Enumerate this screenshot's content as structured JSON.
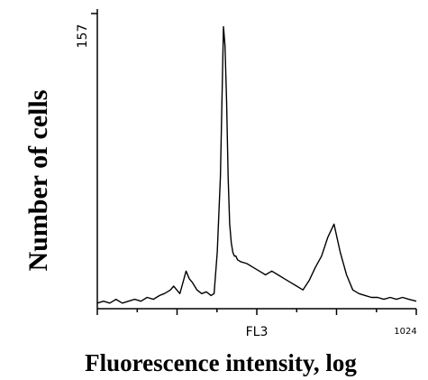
{
  "chart_data": {
    "type": "line",
    "title": "",
    "ylabel": "Number of cells",
    "xlabel": "Fluorescence intensity, log",
    "x_axis_channel_label": "FL3",
    "y_tick_top_label": "157",
    "x_tick_end_label": "1024",
    "xlim": [
      0,
      1024
    ],
    "ylim": [
      0,
      157
    ],
    "x_scale": "log",
    "grid": false,
    "series": [
      {
        "x": [
          0,
          20,
          40,
          60,
          80,
          100,
          120,
          140,
          160,
          180,
          200,
          215,
          225,
          235,
          245,
          255,
          265,
          275,
          285,
          295,
          305,
          320,
          335,
          350,
          365,
          375,
          385,
          395,
          400,
          405,
          410,
          415,
          420,
          425,
          430,
          435,
          440,
          445,
          450,
          460,
          480,
          500,
          520,
          540,
          560,
          580,
          600,
          620,
          640,
          660,
          680,
          700,
          720,
          740,
          760,
          780,
          800,
          820,
          840,
          860,
          880,
          900,
          920,
          940,
          960,
          980,
          1000,
          1024
        ],
        "y": [
          3,
          4,
          3,
          5,
          3,
          4,
          5,
          4,
          6,
          5,
          7,
          8,
          9,
          10,
          12,
          10,
          8,
          14,
          20,
          16,
          14,
          10,
          8,
          9,
          7,
          8,
          30,
          70,
          110,
          150,
          140,
          110,
          70,
          45,
          35,
          30,
          28,
          28,
          26,
          25,
          24,
          22,
          20,
          18,
          20,
          18,
          16,
          14,
          12,
          10,
          15,
          22,
          28,
          38,
          45,
          30,
          18,
          10,
          8,
          7,
          6,
          6,
          5,
          6,
          5,
          6,
          5,
          4
        ]
      }
    ]
  }
}
